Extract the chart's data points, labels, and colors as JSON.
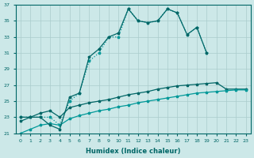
{
  "xlabel": "Humidex (Indice chaleur)",
  "bg_color": "#cce8e8",
  "grid_color": "#aacccc",
  "line_color_dark": "#006666",
  "line_color_light": "#009999",
  "ylim": [
    21,
    37
  ],
  "xlim": [
    -0.5,
    23.5
  ],
  "yticks": [
    21,
    23,
    25,
    27,
    29,
    31,
    33,
    35,
    37
  ],
  "xticks": [
    0,
    1,
    2,
    3,
    4,
    5,
    6,
    7,
    8,
    9,
    10,
    11,
    12,
    13,
    14,
    15,
    16,
    17,
    18,
    19,
    20,
    21,
    22,
    23
  ],
  "curve_peaked_dark": {
    "x": [
      0,
      1,
      2,
      3,
      4,
      5,
      6,
      7,
      8,
      9,
      10,
      11,
      12,
      13,
      14,
      15,
      16,
      17,
      18,
      19
    ],
    "y": [
      23,
      23,
      23,
      22,
      21.5,
      25.5,
      26,
      30.5,
      31.5,
      33,
      33.5,
      36.5,
      35,
      34.8,
      35,
      36.5,
      36,
      33.3,
      34.2,
      31
    ]
  },
  "curve_peaked_light": {
    "x": [
      0,
      1,
      2,
      3,
      4,
      5,
      6,
      7,
      8,
      9,
      10,
      11,
      12,
      13,
      14,
      15,
      16,
      17,
      18,
      19
    ],
    "y": [
      23,
      23,
      23,
      23,
      22,
      25,
      26,
      30,
      31,
      33,
      33,
      36.5,
      35,
      34.8,
      35,
      36.5,
      36,
      33.3,
      34.2,
      31
    ]
  },
  "curve_lower_upper": {
    "x": [
      0,
      1,
      2,
      3,
      4,
      5,
      6,
      7,
      8,
      9,
      10,
      11,
      12,
      13,
      14,
      15,
      16,
      17,
      18,
      19,
      20,
      21,
      22,
      23
    ],
    "y": [
      22.5,
      23,
      23.5,
      23.8,
      23,
      24.2,
      24.5,
      24.8,
      25.0,
      25.2,
      25.5,
      25.8,
      26.0,
      26.2,
      26.5,
      26.7,
      26.9,
      27.0,
      27.1,
      27.2,
      27.3,
      26.5,
      26.5,
      26.5
    ]
  },
  "curve_lower_lower": {
    "x": [
      0,
      1,
      2,
      3,
      4,
      5,
      6,
      7,
      8,
      9,
      10,
      11,
      12,
      13,
      14,
      15,
      16,
      17,
      18,
      19,
      20,
      21,
      22,
      23
    ],
    "y": [
      21,
      21.5,
      22,
      22.2,
      22,
      22.8,
      23.2,
      23.5,
      23.8,
      24.0,
      24.3,
      24.5,
      24.8,
      25.0,
      25.2,
      25.4,
      25.6,
      25.8,
      26.0,
      26.1,
      26.2,
      26.3,
      26.4,
      26.4
    ]
  }
}
